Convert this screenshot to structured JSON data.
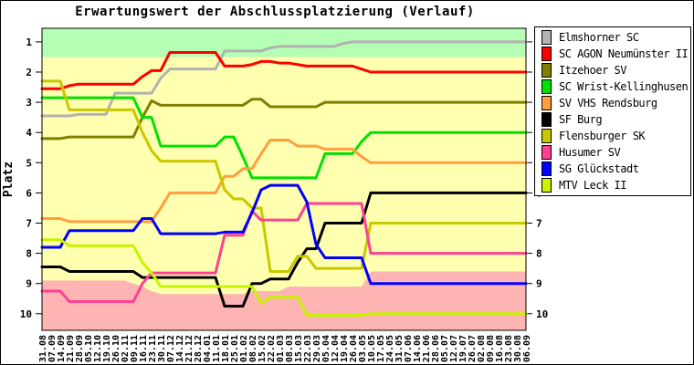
{
  "title": "Erwartungswert der Abschlussplatzierung (Verlauf)",
  "y_axis_title": "Platz",
  "chart_data": {
    "type": "line",
    "title": "Erwartungswert der Abschlussplatzierung (Verlauf)",
    "xlabel": "",
    "ylabel": "Platz",
    "ylim": [
      0.55,
      10.55
    ],
    "y_inverted_note": "Platz 1 oben, Platz 10 unten",
    "y_ticks": [
      1,
      2,
      3,
      4,
      5,
      6,
      7,
      8,
      9,
      10
    ],
    "y_ticks_right": [
      1,
      2,
      3,
      4,
      5,
      6,
      7,
      8,
      9,
      10
    ],
    "legend_position": "right",
    "grid": false,
    "x_tick_labels": [
      "31.08",
      "07.09",
      "14.09",
      "21.09",
      "28.09",
      "05.10",
      "12.10",
      "19.10",
      "26.10",
      "02.11",
      "09.11",
      "16.11",
      "23.11",
      "30.11",
      "07.12",
      "14.12",
      "21.12",
      "28.12",
      "04.01",
      "11.01",
      "18.01",
      "25.01",
      "01.02",
      "08.02",
      "15.02",
      "22.02",
      "01.03",
      "08.03",
      "15.03",
      "22.03",
      "29.03",
      "05.04",
      "12.04",
      "19.04",
      "26.04",
      "03.05",
      "10.05",
      "17.05",
      "24.05",
      "31.05",
      "07.06",
      "14.06",
      "21.06",
      "28.06",
      "05.07",
      "12.07",
      "19.07",
      "26.07",
      "02.08",
      "09.08",
      "16.08",
      "23.08",
      "30.08",
      "06.09"
    ],
    "background_bands": {
      "promotion_zone": {
        "color": "#b4ffb4",
        "from": 0.55,
        "to": 1.5
      },
      "midfield_zone": {
        "color": "#ffffb0"
      },
      "relegation_zone": {
        "color": "#ffb4b4",
        "to": 10.55,
        "top_boundary_by_week": [
          8.9,
          8.9,
          8.9,
          8.9,
          8.9,
          8.9,
          8.9,
          8.9,
          8.9,
          8.9,
          9.0,
          9.1,
          9.25,
          9.35,
          9.35,
          9.35,
          9.35,
          9.35,
          9.35,
          9.35,
          9.35,
          9.35,
          9.35,
          9.25,
          9.25,
          9.25,
          9.25,
          9.1,
          9.1,
          9.1,
          9.1,
          9.1,
          9.1,
          9.1,
          9.1,
          9.1,
          8.6,
          8.6,
          8.6,
          8.6,
          8.6,
          8.6,
          8.6,
          8.6,
          8.6,
          8.6,
          8.6,
          8.6,
          8.6,
          8.6,
          8.6,
          8.6,
          8.6,
          8.6
        ]
      }
    },
    "series": [
      {
        "name": "Elmshorner SC",
        "color": "#b2b2b2",
        "values": [
          3.45,
          3.45,
          3.45,
          3.45,
          3.4,
          3.4,
          3.4,
          3.4,
          2.7,
          2.7,
          2.7,
          2.7,
          2.7,
          2.2,
          1.9,
          1.9,
          1.9,
          1.9,
          1.9,
          1.9,
          1.3,
          1.3,
          1.3,
          1.3,
          1.3,
          1.2,
          1.15,
          1.15,
          1.15,
          1.15,
          1.15,
          1.15,
          1.15,
          1.05,
          1.0,
          1.0,
          1.0,
          1.0,
          1.0,
          1.0,
          1.0,
          1.0,
          1.0,
          1.0,
          1.0,
          1.0,
          1.0,
          1.0,
          1.0,
          1.0,
          1.0,
          1.0,
          1.0,
          1.0
        ]
      },
      {
        "name": "SC AGON Neumünster II",
        "color": "#ff0000",
        "values": [
          2.55,
          2.55,
          2.55,
          2.45,
          2.4,
          2.4,
          2.4,
          2.4,
          2.4,
          2.4,
          2.4,
          2.15,
          1.95,
          1.95,
          1.35,
          1.35,
          1.35,
          1.35,
          1.35,
          1.35,
          1.8,
          1.8,
          1.8,
          1.75,
          1.65,
          1.65,
          1.7,
          1.7,
          1.75,
          1.8,
          1.8,
          1.8,
          1.8,
          1.8,
          1.8,
          1.9,
          2.0,
          2.0,
          2.0,
          2.0,
          2.0,
          2.0,
          2.0,
          2.0,
          2.0,
          2.0,
          2.0,
          2.0,
          2.0,
          2.0,
          2.0,
          2.0,
          2.0,
          2.0
        ]
      },
      {
        "name": "Itzehoer SV",
        "color": "#7f7f00",
        "values": [
          4.2,
          4.2,
          4.2,
          4.15,
          4.15,
          4.15,
          4.15,
          4.15,
          4.15,
          4.15,
          4.15,
          3.5,
          2.95,
          3.1,
          3.1,
          3.1,
          3.1,
          3.1,
          3.1,
          3.1,
          3.1,
          3.1,
          3.1,
          2.9,
          2.9,
          3.15,
          3.15,
          3.15,
          3.15,
          3.15,
          3.15,
          3.0,
          3.0,
          3.0,
          3.0,
          3.0,
          3.0,
          3.0,
          3.0,
          3.0,
          3.0,
          3.0,
          3.0,
          3.0,
          3.0,
          3.0,
          3.0,
          3.0,
          3.0,
          3.0,
          3.0,
          3.0,
          3.0,
          3.0
        ]
      },
      {
        "name": "SC Wrist-Kellinghusen",
        "color": "#00e100",
        "values": [
          2.85,
          2.85,
          2.85,
          2.85,
          2.85,
          2.85,
          2.85,
          2.85,
          2.85,
          2.85,
          2.85,
          3.5,
          3.5,
          4.45,
          4.45,
          4.45,
          4.45,
          4.45,
          4.45,
          4.45,
          4.15,
          4.15,
          4.8,
          5.5,
          5.5,
          5.5,
          5.5,
          5.5,
          5.5,
          5.5,
          5.5,
          4.7,
          4.7,
          4.7,
          4.7,
          4.3,
          4.0,
          4.0,
          4.0,
          4.0,
          4.0,
          4.0,
          4.0,
          4.0,
          4.0,
          4.0,
          4.0,
          4.0,
          4.0,
          4.0,
          4.0,
          4.0,
          4.0,
          4.0
        ]
      },
      {
        "name": "SV VHS Rendsburg",
        "color": "#ff9f40",
        "values": [
          6.85,
          6.85,
          6.85,
          6.95,
          6.95,
          6.95,
          6.95,
          6.95,
          6.95,
          6.95,
          6.95,
          6.95,
          6.95,
          6.5,
          6.0,
          6.0,
          6.0,
          6.0,
          6.0,
          6.0,
          5.45,
          5.45,
          5.2,
          5.2,
          4.7,
          4.25,
          4.25,
          4.25,
          4.45,
          4.45,
          4.45,
          4.55,
          4.55,
          4.55,
          4.55,
          4.8,
          5.0,
          5.0,
          5.0,
          5.0,
          5.0,
          5.0,
          5.0,
          5.0,
          5.0,
          5.0,
          5.0,
          5.0,
          5.0,
          5.0,
          5.0,
          5.0,
          5.0,
          5.0
        ]
      },
      {
        "name": "SF Burg",
        "color": "#000000",
        "values": [
          8.45,
          8.45,
          8.45,
          8.6,
          8.6,
          8.6,
          8.6,
          8.6,
          8.6,
          8.6,
          8.6,
          8.8,
          8.8,
          8.8,
          8.8,
          8.8,
          8.8,
          8.8,
          8.8,
          8.8,
          9.75,
          9.75,
          9.75,
          9.0,
          9.0,
          8.85,
          8.85,
          8.85,
          8.3,
          7.85,
          7.85,
          7.0,
          7.0,
          7.0,
          7.0,
          7.0,
          6.0,
          6.0,
          6.0,
          6.0,
          6.0,
          6.0,
          6.0,
          6.0,
          6.0,
          6.0,
          6.0,
          6.0,
          6.0,
          6.0,
          6.0,
          6.0,
          6.0,
          6.0
        ]
      },
      {
        "name": "Flensburger SK",
        "color": "#c8c800",
        "values": [
          2.3,
          2.3,
          2.3,
          3.25,
          3.25,
          3.25,
          3.25,
          3.25,
          3.25,
          3.25,
          3.25,
          4.0,
          4.6,
          4.95,
          4.95,
          4.95,
          4.95,
          4.95,
          4.95,
          4.95,
          5.9,
          6.2,
          6.2,
          6.5,
          6.5,
          8.6,
          8.6,
          8.6,
          8.1,
          8.1,
          8.5,
          8.5,
          8.5,
          8.5,
          8.5,
          8.5,
          7.0,
          7.0,
          7.0,
          7.0,
          7.0,
          7.0,
          7.0,
          7.0,
          7.0,
          7.0,
          7.0,
          7.0,
          7.0,
          7.0,
          7.0,
          7.0,
          7.0,
          7.0
        ]
      },
      {
        "name": "Husumer SV",
        "color": "#ff4093",
        "values": [
          9.25,
          9.25,
          9.25,
          9.6,
          9.6,
          9.6,
          9.6,
          9.6,
          9.6,
          9.6,
          9.6,
          9.0,
          8.65,
          8.65,
          8.65,
          8.65,
          8.65,
          8.65,
          8.65,
          8.65,
          7.4,
          7.4,
          7.4,
          6.6,
          6.9,
          6.9,
          6.9,
          6.9,
          6.9,
          6.35,
          6.35,
          6.35,
          6.35,
          6.35,
          6.35,
          6.35,
          8.0,
          8.0,
          8.0,
          8.0,
          8.0,
          8.0,
          8.0,
          8.0,
          8.0,
          8.0,
          8.0,
          8.0,
          8.0,
          8.0,
          8.0,
          8.0,
          8.0,
          8.0
        ]
      },
      {
        "name": "SG Glückstadt",
        "color": "#0000ff",
        "values": [
          7.8,
          7.8,
          7.8,
          7.25,
          7.25,
          7.25,
          7.25,
          7.25,
          7.25,
          7.25,
          7.25,
          6.85,
          6.85,
          7.35,
          7.35,
          7.35,
          7.35,
          7.35,
          7.35,
          7.35,
          7.3,
          7.3,
          7.3,
          6.65,
          5.9,
          5.75,
          5.75,
          5.75,
          5.75,
          6.3,
          7.7,
          8.15,
          8.15,
          8.15,
          8.15,
          8.15,
          9.0,
          9.0,
          9.0,
          9.0,
          9.0,
          9.0,
          9.0,
          9.0,
          9.0,
          9.0,
          9.0,
          9.0,
          9.0,
          9.0,
          9.0,
          9.0,
          9.0,
          9.0
        ]
      },
      {
        "name": "MTV Leck II",
        "color": "#c8f400",
        "values": [
          7.55,
          7.55,
          7.55,
          7.75,
          7.75,
          7.75,
          7.75,
          7.75,
          7.75,
          7.75,
          7.75,
          8.3,
          8.65,
          9.1,
          9.1,
          9.1,
          9.1,
          9.1,
          9.1,
          9.1,
          9.1,
          9.1,
          9.1,
          9.1,
          9.65,
          9.45,
          9.45,
          9.45,
          9.45,
          10.05,
          10.05,
          10.05,
          10.05,
          10.05,
          10.05,
          10.05,
          10.0,
          10.0,
          10.0,
          10.0,
          10.0,
          10.0,
          10.0,
          10.0,
          10.0,
          10.0,
          10.0,
          10.0,
          10.0,
          10.0,
          10.0,
          10.0,
          10.0,
          10.0
        ]
      }
    ]
  }
}
